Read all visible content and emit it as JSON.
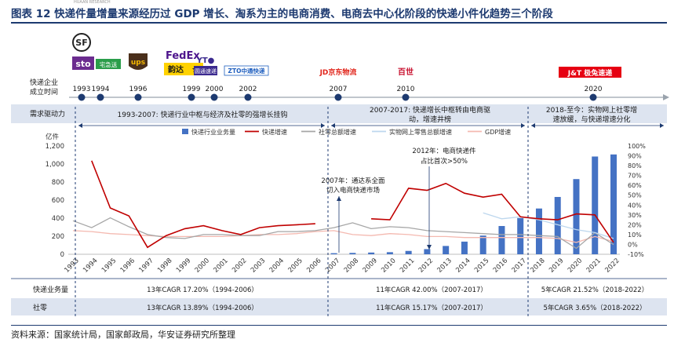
{
  "title": "图表 12 快递件量增量来源经历过 GDP 增长、淘系为主的电商消费、电商去中心化阶段的快递小件化趋势三个阶段",
  "tiny_text": "HUAAN RESEARCH",
  "source": "资料来源：国家统计局，国家邮政局，华安证券研究所整理",
  "timeline": {
    "label_line1": "快递企业",
    "label_line2": "成立时间",
    "years": [
      "1993",
      "1994",
      "1996",
      "1999",
      "2000",
      "2002",
      "2007",
      "2010",
      "2020"
    ],
    "logos": [
      {
        "name": "sf",
        "text": "SF",
        "year": "1993"
      },
      {
        "name": "sto",
        "text": "sto",
        "year": "1993"
      },
      {
        "name": "zjs",
        "text": "宅急送",
        "year": "1994"
      },
      {
        "name": "ups",
        "text": "ups",
        "year": "1996"
      },
      {
        "name": "fedex",
        "text": "FedEx",
        "year": "1999"
      },
      {
        "name": "yunda",
        "text": "韵达",
        "year": "1999"
      },
      {
        "name": "yto",
        "text": "圆通速递",
        "year": "2000"
      },
      {
        "name": "zto",
        "text": "ZTO中通快递",
        "year": "2002"
      },
      {
        "name": "jd",
        "text": "JD京东物流",
        "year": "2007"
      },
      {
        "name": "best",
        "text": "百世",
        "year": "2010"
      },
      {
        "name": "jt",
        "text": "J&T 极兔速递",
        "year": "2020"
      }
    ]
  },
  "demand": {
    "label": "需求驱动力",
    "phase1": "1993-2007: 快递行业中枢与经济及社零的强增长挂钩",
    "phase2_line1": "2007-2017: 快递增长中枢转由电商驱",
    "phase2_line2": "动，增速井榜",
    "phase3_line1": "2018-至今：实物网上社零增",
    "phase3_line2": "速放缓，与快递增速分化"
  },
  "cagr": {
    "row1_label": "快递业务量",
    "row2_label": "社零",
    "row1": [
      "13年CAGR 17.20%（1994-2006）",
      "11年CAGR 42.00%（2007-2017）",
      "5年CAGR 21.52%（2018-2022）"
    ],
    "row2": [
      "13年CAGR 13.89%（1994-2006）",
      "11年CAGR 15.17%（2007-2017）",
      "5年CAGR 3.65%（2018-2022）"
    ]
  },
  "annotations": {
    "a2007_line1": "2007年：通达系全面",
    "a2007_line2": "切入电商快递市场",
    "a2012_line1": "2012年：电商快递件",
    "a2012_line2": "占比首次>50%"
  },
  "colors": {
    "navy": "#1d3a70",
    "bar": "#4472c4",
    "express_growth": "#c00000",
    "retail_growth": "#a6a6a6",
    "online_growth": "#bdd7ee",
    "gdp_growth": "#f4b9b0",
    "band": "#dde4f0"
  },
  "chart_data": {
    "type": "bar+line",
    "y_unit_label": "亿件",
    "categories": [
      "1993",
      "1994",
      "1995",
      "1996",
      "1997",
      "1998",
      "1999",
      "2000",
      "2001",
      "2002",
      "2003",
      "2004",
      "2005",
      "2006",
      "2007",
      "2008",
      "2009",
      "2010",
      "2011",
      "2012",
      "2013",
      "2014",
      "2015",
      "2016",
      "2017",
      "2018",
      "2019",
      "2020",
      "2021",
      "2022"
    ],
    "ylim_left": [
      0,
      1200
    ],
    "yticks_left": [
      "0",
      "200",
      "400",
      "600",
      "800",
      "1,000",
      "1,200"
    ],
    "ylim_right": [
      -10,
      100
    ],
    "yticks_right": [
      "-10%",
      "0%",
      "10%",
      "20%",
      "30%",
      "40%",
      "50%",
      "60%",
      "70%",
      "80%",
      "90%",
      "100%"
    ],
    "series": [
      {
        "name": "快递行业业务量",
        "type": "bar",
        "axis": "left",
        "values": [
          null,
          null,
          null,
          null,
          null,
          null,
          null,
          null,
          null,
          null,
          null,
          null,
          null,
          null,
          12,
          15,
          19,
          23,
          37,
          57,
          92,
          140,
          207,
          313,
          401,
          507,
          635,
          833,
          1083,
          1106
        ]
      },
      {
        "name": "快递增速",
        "type": "line",
        "axis": "right",
        "values": [
          null,
          85,
          37,
          29,
          -3,
          9,
          16,
          19,
          14,
          10,
          17,
          19,
          20,
          21,
          null,
          null,
          26,
          25,
          57,
          55,
          62,
          52,
          48,
          51,
          28,
          26,
          25,
          31,
          30,
          2
        ]
      },
      {
        "name": "社零总额增速",
        "type": "line",
        "axis": "right",
        "values": [
          24,
          17,
          27,
          18,
          10,
          7,
          6,
          10,
          10,
          9,
          9,
          13,
          13,
          14,
          17,
          22,
          16,
          18,
          17,
          14,
          13,
          12,
          11,
          10,
          10,
          9,
          8,
          -4,
          12,
          -0.2
        ]
      },
      {
        "name": "实物网上零售总额增速",
        "type": "line",
        "axis": "right",
        "values": [
          null,
          null,
          null,
          null,
          null,
          null,
          null,
          null,
          null,
          null,
          null,
          null,
          null,
          null,
          null,
          null,
          null,
          null,
          null,
          null,
          null,
          null,
          32,
          26,
          28,
          25,
          20,
          15,
          12,
          6
        ]
      },
      {
        "name": "GDP增速",
        "type": "line",
        "axis": "right",
        "values": [
          14,
          13,
          11,
          10,
          9,
          8,
          8,
          8,
          8,
          9,
          10,
          10,
          11,
          13,
          14,
          10,
          9,
          11,
          10,
          8,
          8,
          7,
          7,
          7,
          7,
          7,
          6,
          2,
          8,
          3
        ]
      }
    ],
    "phase_dividers": [
      "2006/2007",
      "2017/2018"
    ]
  }
}
